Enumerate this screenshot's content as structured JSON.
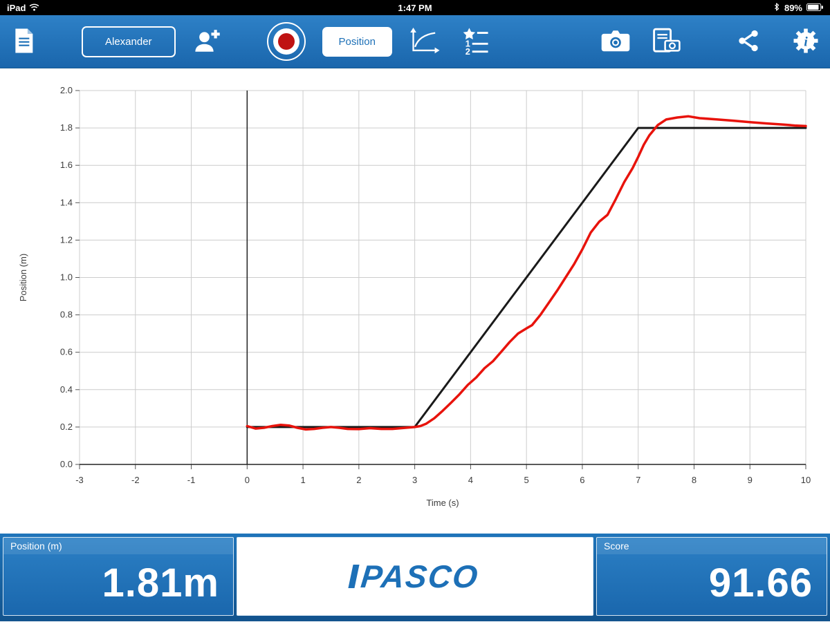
{
  "status_bar": {
    "device": "iPad",
    "time": "1:47 PM",
    "battery_percent": "89%"
  },
  "toolbar": {
    "icons": [
      "journal-icon",
      "add-user-icon",
      "record-icon",
      "scale-to-fit-icon",
      "data-list-icon",
      "camera-icon",
      "snapshot-icon",
      "share-icon",
      "settings-gear-icon"
    ],
    "user_button_label": "Alexander",
    "measurement_button_label": "Position",
    "list_icon_rows": [
      "1",
      "2"
    ],
    "gear_info_char": "i"
  },
  "chart_data": {
    "type": "line",
    "title": "",
    "xlabel": "Time (s)",
    "ylabel": "Position (m)",
    "xlim": [
      -3,
      10
    ],
    "ylim": [
      0.0,
      2.0
    ],
    "grid": true,
    "legend": "none",
    "xticks": [
      -3,
      -2,
      -1,
      0,
      1,
      2,
      3,
      4,
      5,
      6,
      7,
      8,
      9,
      10
    ],
    "xtick_labels": [
      "-3",
      "-2",
      "-1",
      "0",
      "1",
      "2",
      "3",
      "4",
      "5",
      "6",
      "7",
      "8",
      "9",
      "10"
    ],
    "yticks": [
      0.0,
      0.2,
      0.4,
      0.6,
      0.8,
      1.0,
      1.2,
      1.4,
      1.6,
      1.8,
      2.0
    ],
    "ytick_labels": [
      "0.0",
      "0.2",
      "0.4",
      "0.6",
      "0.8",
      "1.0",
      "1.2",
      "1.4",
      "1.6",
      "1.8",
      "2.0"
    ],
    "series": [
      {
        "name": "target-line",
        "color": "#1a1a1a",
        "width": 3,
        "points": [
          [
            0,
            0.2
          ],
          [
            3,
            0.2
          ],
          [
            7,
            1.8
          ],
          [
            10,
            1.8
          ]
        ]
      },
      {
        "name": "recorded-position",
        "color": "#e8130c",
        "width": 3.5,
        "points": [
          [
            0,
            0.205
          ],
          [
            0.15,
            0.192
          ],
          [
            0.3,
            0.196
          ],
          [
            0.45,
            0.205
          ],
          [
            0.6,
            0.212
          ],
          [
            0.75,
            0.208
          ],
          [
            0.9,
            0.196
          ],
          [
            1.05,
            0.187
          ],
          [
            1.2,
            0.19
          ],
          [
            1.35,
            0.196
          ],
          [
            1.5,
            0.2
          ],
          [
            1.65,
            0.196
          ],
          [
            1.8,
            0.19
          ],
          [
            2,
            0.189
          ],
          [
            2.2,
            0.194
          ],
          [
            2.4,
            0.19
          ],
          [
            2.6,
            0.19
          ],
          [
            2.8,
            0.195
          ],
          [
            3,
            0.2
          ],
          [
            3.1,
            0.205
          ],
          [
            3.2,
            0.217
          ],
          [
            3.35,
            0.247
          ],
          [
            3.5,
            0.287
          ],
          [
            3.65,
            0.33
          ],
          [
            3.8,
            0.375
          ],
          [
            3.95,
            0.425
          ],
          [
            4.1,
            0.465
          ],
          [
            4.25,
            0.515
          ],
          [
            4.4,
            0.552
          ],
          [
            4.55,
            0.603
          ],
          [
            4.7,
            0.655
          ],
          [
            4.85,
            0.7
          ],
          [
            5,
            0.728
          ],
          [
            5.1,
            0.745
          ],
          [
            5.25,
            0.8
          ],
          [
            5.4,
            0.865
          ],
          [
            5.55,
            0.93
          ],
          [
            5.7,
            1.0
          ],
          [
            5.85,
            1.07
          ],
          [
            6,
            1.15
          ],
          [
            6.15,
            1.24
          ],
          [
            6.3,
            1.298
          ],
          [
            6.45,
            1.335
          ],
          [
            6.6,
            1.42
          ],
          [
            6.75,
            1.51
          ],
          [
            6.9,
            1.585
          ],
          [
            7,
            1.645
          ],
          [
            7.1,
            1.71
          ],
          [
            7.2,
            1.76
          ],
          [
            7.35,
            1.815
          ],
          [
            7.5,
            1.845
          ],
          [
            7.7,
            1.856
          ],
          [
            7.9,
            1.862
          ],
          [
            8.1,
            1.852
          ],
          [
            8.4,
            1.846
          ],
          [
            8.7,
            1.839
          ],
          [
            9,
            1.831
          ],
          [
            9.3,
            1.824
          ],
          [
            9.6,
            1.818
          ],
          [
            9.8,
            1.813
          ],
          [
            10,
            1.81
          ]
        ]
      }
    ]
  },
  "bottom_bar": {
    "position": {
      "label": "Position (m)",
      "value": "1.81m"
    },
    "logo": "PASCO",
    "score": {
      "label": "Score",
      "value": "91.66"
    }
  },
  "colors": {
    "toolbar_blue": "#1d70b7",
    "record_red": "#bf1212",
    "data_line_red": "#e8130c",
    "target_line_black": "#1a1a1a"
  }
}
